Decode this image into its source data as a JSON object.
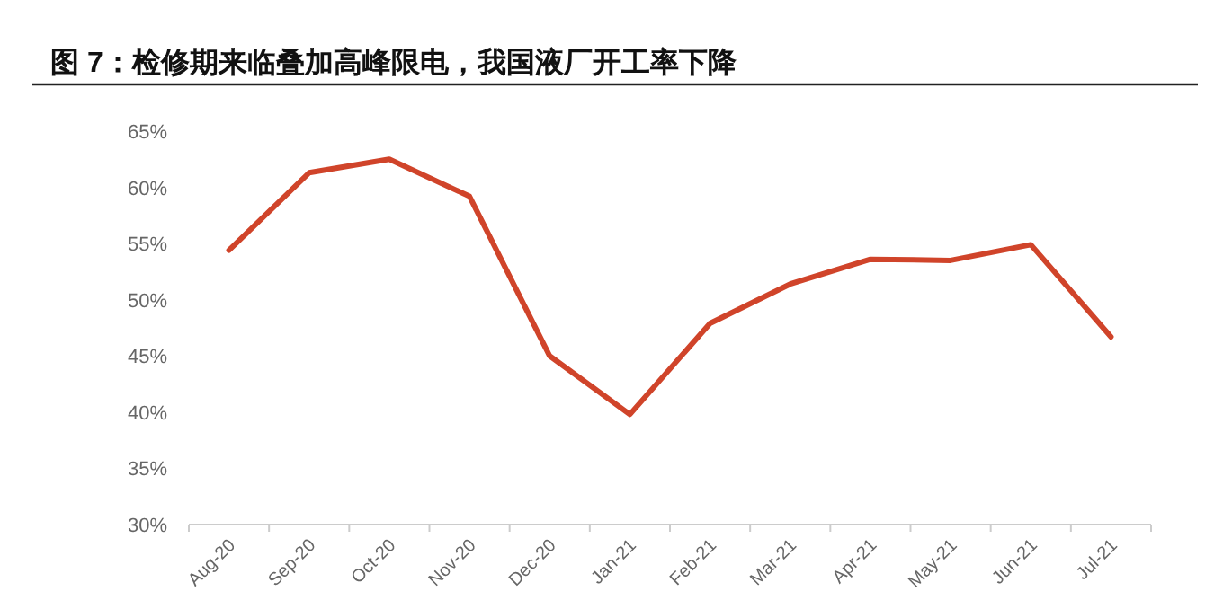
{
  "chart_data": {
    "type": "line",
    "title": "图 7：检修期来临叠加高峰限电，我国液厂开工率下降",
    "categories": [
      "Aug-20",
      "Sep-20",
      "Oct-20",
      "Nov-20",
      "Dec-20",
      "Jan-21",
      "Feb-21",
      "Mar-21",
      "Apr-21",
      "May-21",
      "Jun-21",
      "Jul-21"
    ],
    "series": [
      {
        "color": "#d0442a",
        "values": [
          54.4,
          61.3,
          62.5,
          59.2,
          45.0,
          39.8,
          47.9,
          51.4,
          53.6,
          53.5,
          54.9,
          46.7
        ]
      }
    ],
    "ylim": [
      30,
      65
    ],
    "yticks": [
      {
        "value": 30,
        "label": "30%"
      },
      {
        "value": 35,
        "label": "35%"
      },
      {
        "value": 40,
        "label": "40%"
      },
      {
        "value": 45,
        "label": "45%"
      },
      {
        "value": 50,
        "label": "50%"
      },
      {
        "value": 55,
        "label": "55%"
      },
      {
        "value": 60,
        "label": "60%"
      },
      {
        "value": 65,
        "label": "65%"
      }
    ],
    "grid": false,
    "marker": "none",
    "line_style": "solid"
  }
}
